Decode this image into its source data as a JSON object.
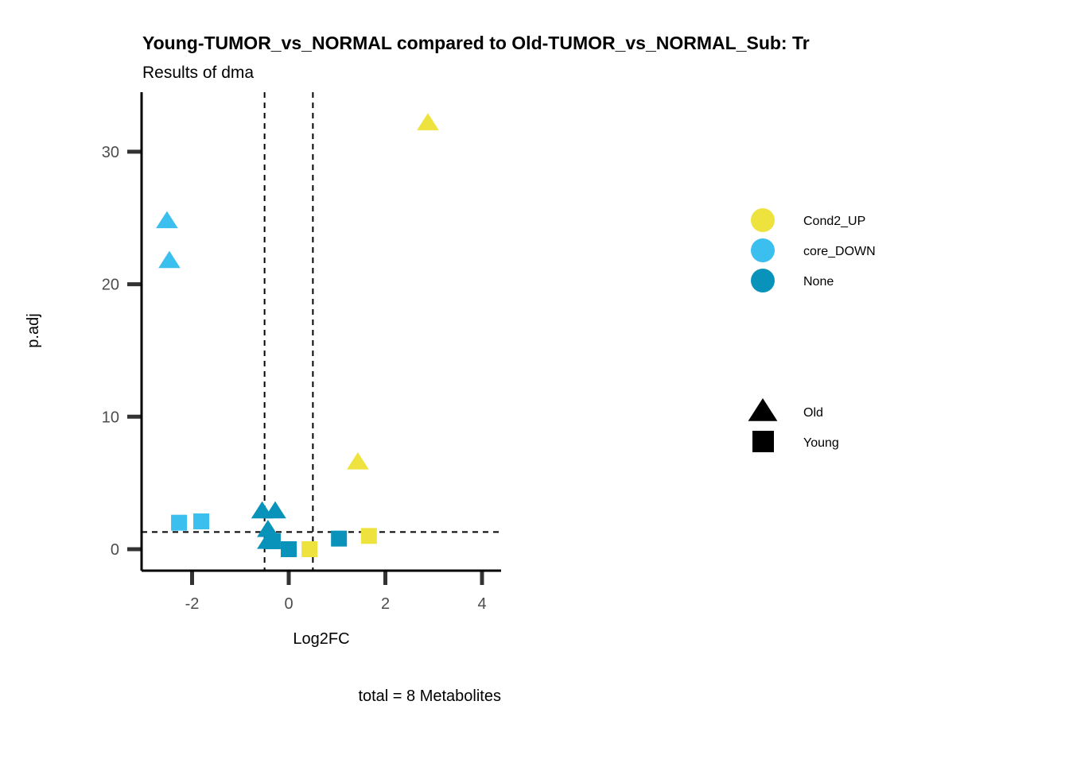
{
  "chart_data": {
    "type": "scatter",
    "title": "Young-TUMOR_vs_NORMAL compared to Old-TUMOR_vs_NORMAL_Sub: Tr",
    "subtitle": "Results of dma",
    "xlabel": "Log2FC",
    "ylabel": "p.adj",
    "caption": "total = 8 Metabolites",
    "xlim": [
      -3.0,
      4.4
    ],
    "ylim": [
      -1.6,
      34.5
    ],
    "xticks": [
      -2,
      0,
      2,
      4
    ],
    "yticks": [
      0,
      10,
      20,
      30
    ],
    "xtick_labels": [
      "-2",
      "0",
      "2",
      "4"
    ],
    "ytick_labels": [
      "0",
      "10",
      "20",
      "30"
    ],
    "thresholds": {
      "x": [
        -0.5,
        0.5
      ],
      "y": 1.3
    },
    "grid": false,
    "legend_placement": "right",
    "color_legend": [
      {
        "label": "Cond2_UP",
        "color": "#EEE33E"
      },
      {
        "label": "core_DOWN",
        "color": "#3BBFEF"
      },
      {
        "label": "None",
        "color": "#0A93BA"
      }
    ],
    "shape_legend": [
      {
        "label": "Old",
        "shape": "triangle"
      },
      {
        "label": "Young",
        "shape": "square"
      }
    ],
    "points": [
      {
        "x": 2.88,
        "y": 32.2,
        "group": "Cond2_UP",
        "shape": "triangle"
      },
      {
        "x": -2.52,
        "y": 24.8,
        "group": "core_DOWN",
        "shape": "triangle"
      },
      {
        "x": -2.47,
        "y": 21.8,
        "group": "core_DOWN",
        "shape": "triangle"
      },
      {
        "x": 1.43,
        "y": 6.6,
        "group": "Cond2_UP",
        "shape": "triangle"
      },
      {
        "x": -0.55,
        "y": 2.9,
        "group": "None",
        "shape": "triangle"
      },
      {
        "x": -0.28,
        "y": 2.9,
        "group": "None",
        "shape": "triangle"
      },
      {
        "x": -0.43,
        "y": 1.5,
        "group": "None",
        "shape": "triangle"
      },
      {
        "x": -0.43,
        "y": 0.6,
        "group": "None",
        "shape": "triangle"
      },
      {
        "x": -2.27,
        "y": 2.0,
        "group": "core_DOWN",
        "shape": "square"
      },
      {
        "x": -1.81,
        "y": 2.1,
        "group": "core_DOWN",
        "shape": "square"
      },
      {
        "x": -0.33,
        "y": 0.6,
        "group": "None",
        "shape": "square"
      },
      {
        "x": 0.0,
        "y": 0.0,
        "group": "None",
        "shape": "square"
      },
      {
        "x": 1.04,
        "y": 0.8,
        "group": "None",
        "shape": "square"
      },
      {
        "x": 0.43,
        "y": 0.0,
        "group": "Cond2_UP",
        "shape": "square"
      },
      {
        "x": 1.66,
        "y": 1.0,
        "group": "Cond2_UP",
        "shape": "square"
      }
    ]
  }
}
